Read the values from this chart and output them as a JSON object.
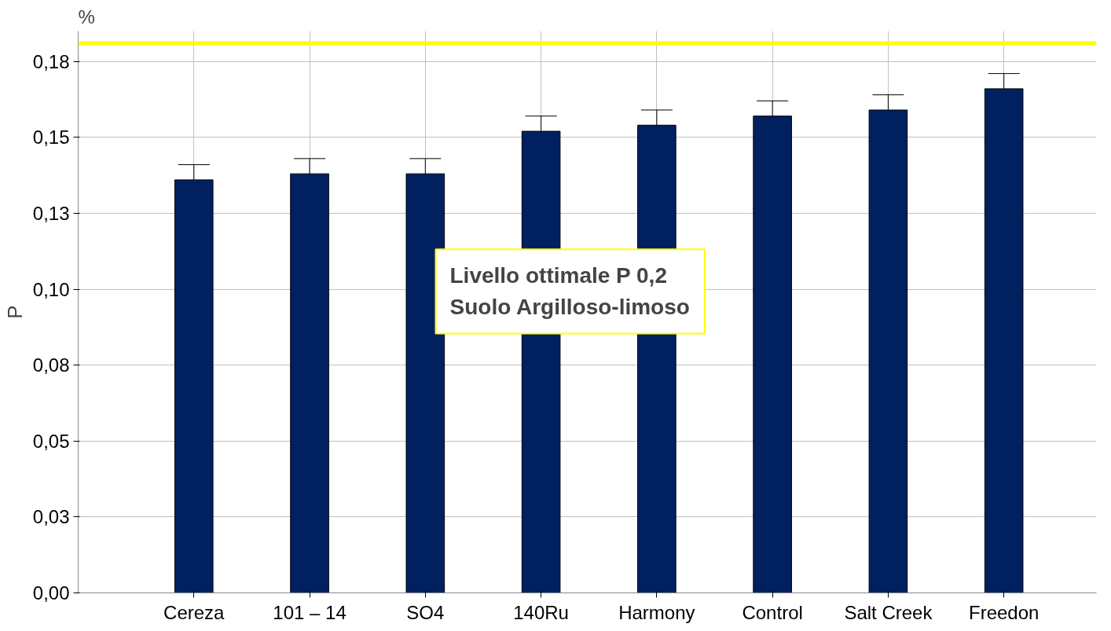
{
  "chart_data": {
    "type": "bar",
    "title": "%",
    "ylabel": "P",
    "categories": [
      "Cereza",
      "101 – 14",
      "SO4",
      "140Ru",
      "Harmony",
      "Control",
      "Salt Creek",
      "Freedon"
    ],
    "series": [
      {
        "color": "#002060",
        "values": [
          0.136,
          0.138,
          0.138,
          0.152,
          0.154,
          0.157,
          0.159,
          0.166
        ],
        "errors": [
          0.005,
          0.005,
          0.005,
          0.005,
          0.005,
          0.005,
          0.005,
          0.005
        ]
      }
    ],
    "ylim": [
      0,
      0.185
    ],
    "yticks": [
      {
        "value": 0,
        "label": "0,00"
      },
      {
        "value": 0.025,
        "label": "0,03"
      },
      {
        "value": 0.05,
        "label": "0,05"
      },
      {
        "value": 0.075,
        "label": "0,08"
      },
      {
        "value": 0.1,
        "label": "0,10"
      },
      {
        "value": 0.125,
        "label": "0,13"
      },
      {
        "value": 0.15,
        "label": "0,15"
      },
      {
        "value": 0.175,
        "label": "0,18"
      }
    ],
    "ref_lines": [
      {
        "axis": "y",
        "value": 0.181,
        "color": "#ffff00"
      }
    ],
    "annotations": [
      "Livello ottimale P 0,2\nSuolo Argilloso-limoso"
    ],
    "grid": true
  }
}
